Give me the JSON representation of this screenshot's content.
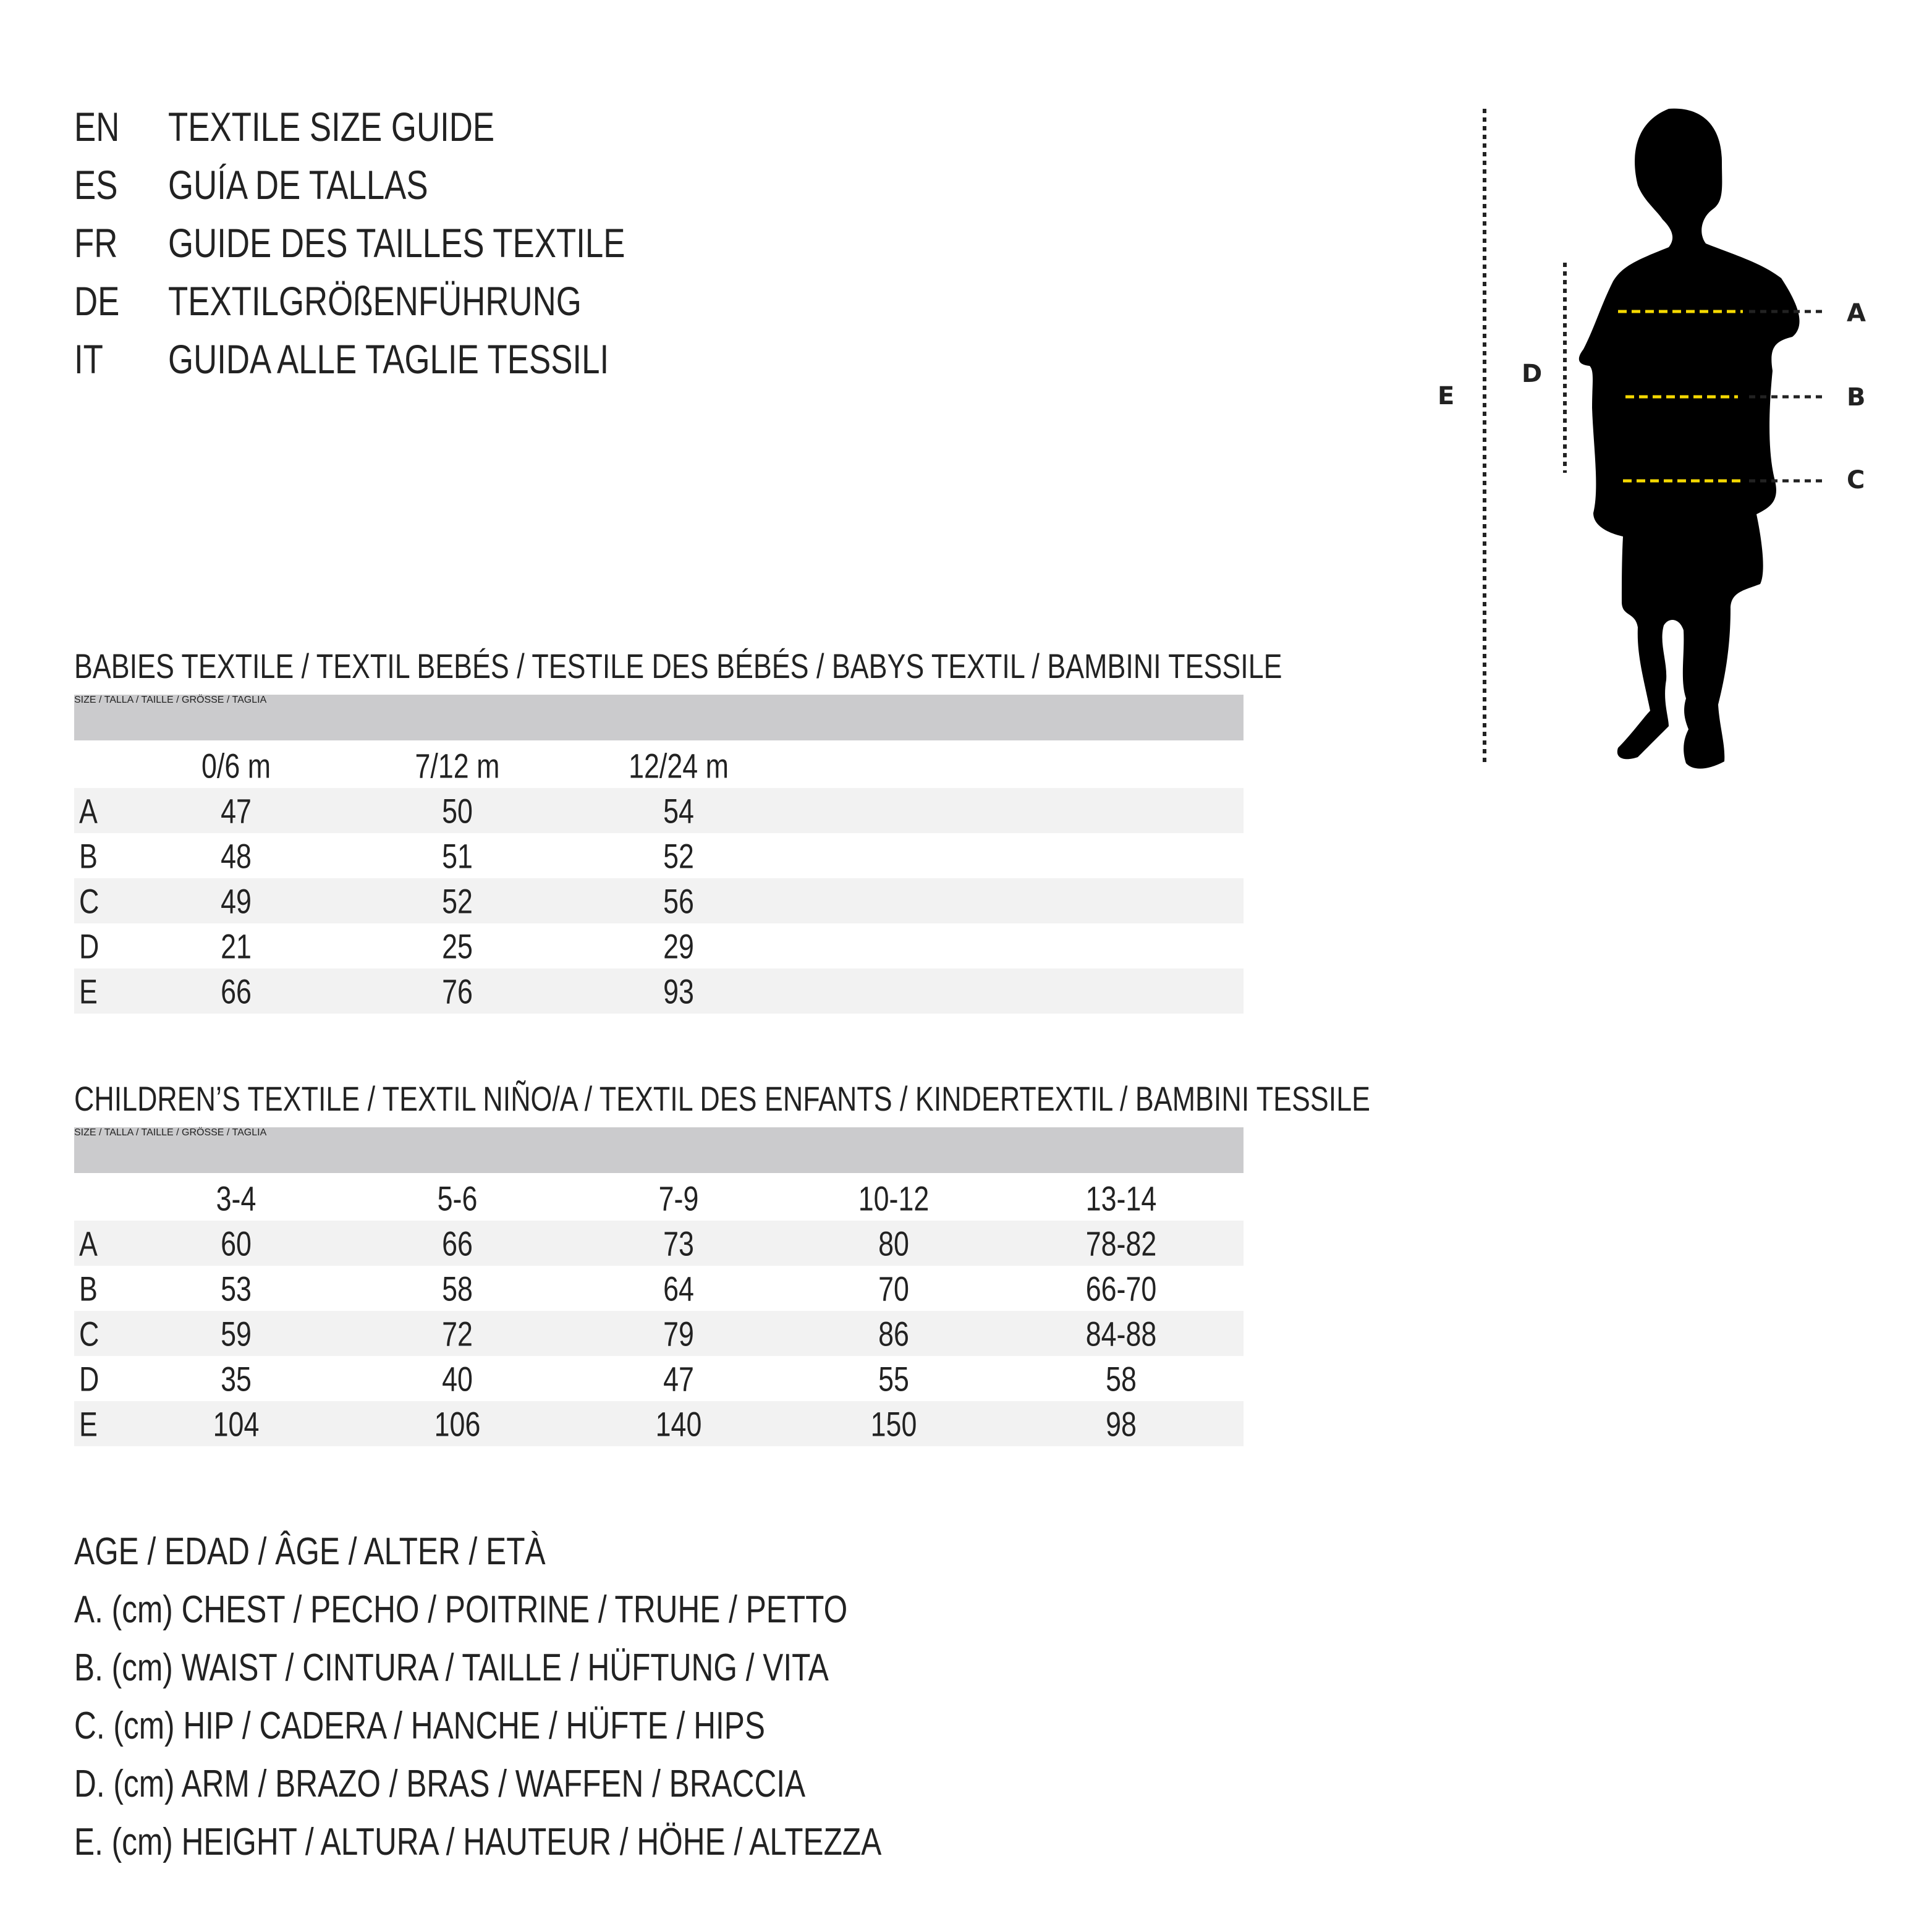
{
  "titles": [
    {
      "code": "EN",
      "text": "TEXTILE SIZE GUIDE"
    },
    {
      "code": "ES",
      "text": "GUÍA DE TALLAS"
    },
    {
      "code": "FR",
      "text": "GUIDE DES TAILLES TEXTILE"
    },
    {
      "code": "DE",
      "text": "TEXTILGRÖßENFÜHRUNG"
    },
    {
      "code": "IT",
      "text": "GUIDA ALLE TAGLIE TESSILI"
    }
  ],
  "babies": {
    "heading": "BABIES TEXTILE / TEXTIL BEBÉS / TESTILE DES BÉBÉS / BABYS TEXTIL / BAMBINI TESSILE",
    "size_header": "SIZE / TALLA / TAILLE / GRÖSSE / TAGLIA",
    "columns": [
      "0/6 m",
      "7/12 m",
      "12/24 m"
    ],
    "rows": [
      {
        "label": "A",
        "values": [
          "47",
          "50",
          "54"
        ]
      },
      {
        "label": "B",
        "values": [
          "48",
          "51",
          "52"
        ]
      },
      {
        "label": "C",
        "values": [
          "49",
          "52",
          "56"
        ]
      },
      {
        "label": "D",
        "values": [
          "21",
          "25",
          "29"
        ]
      },
      {
        "label": "E",
        "values": [
          "66",
          "76",
          "93"
        ]
      }
    ]
  },
  "children": {
    "heading": "CHILDREN’S TEXTILE / TEXTIL NIÑO/A / TEXTIL DES ENFANTS / KINDERTEXTIL / BAMBINI TESSILE",
    "size_header": "SIZE / TALLA / TAILLE / GRÖSSE / TAGLIA",
    "columns": [
      "3-4",
      "5-6",
      "7-9",
      "10-12",
      "13-14"
    ],
    "rows": [
      {
        "label": "A",
        "values": [
          "60",
          "66",
          "73",
          "80",
          "78-82"
        ]
      },
      {
        "label": "B",
        "values": [
          "53",
          "58",
          "64",
          "70",
          "66-70"
        ]
      },
      {
        "label": "C",
        "values": [
          "59",
          "72",
          "79",
          "86",
          "84-88"
        ]
      },
      {
        "label": "D",
        "values": [
          "35",
          "40",
          "47",
          "55",
          "58"
        ]
      },
      {
        "label": "E",
        "values": [
          "104",
          "106",
          "140",
          "150",
          "98"
        ]
      }
    ]
  },
  "legend": [
    "AGE / EDAD / ÂGE / ALTER / ETÀ",
    "A. (cm) CHEST / PECHO / POITRINE / TRUHE / PETTO",
    "B. (cm) WAIST / CINTURA / TAILLE / HÜFTUNG / VITA",
    "C. (cm) HIP / CADERA / HANCHE / HÜFTE / HIPS",
    "D. (cm) ARM / BRAZO / BRAS / WAFFEN / BRACCIA",
    "E. (cm) HEIGHT / ALTURA / HAUTEUR / HÖHE / ALTEZZA"
  ],
  "figure": {
    "labels": {
      "A": "A",
      "B": "B",
      "C": "C",
      "D": "D",
      "E": "E"
    },
    "measure_color": "#f5d800",
    "silhouette_color": "#000000"
  }
}
